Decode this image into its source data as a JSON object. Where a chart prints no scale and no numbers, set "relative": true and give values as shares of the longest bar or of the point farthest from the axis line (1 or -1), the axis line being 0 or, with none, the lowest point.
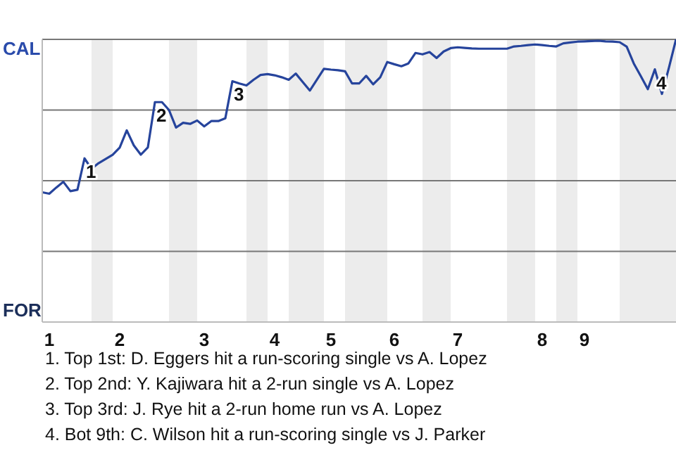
{
  "chart_data": {
    "type": "line",
    "relative": true,
    "categories": [
      null,
      "1",
      null,
      null,
      null,
      null,
      null,
      null,
      null,
      null,
      null,
      "2",
      null,
      null,
      null,
      null,
      null,
      null,
      null,
      null,
      null,
      null,
      null,
      "3",
      null,
      null,
      null,
      null,
      null,
      null,
      null,
      null,
      null,
      "4",
      null,
      null,
      null,
      null,
      null,
      null,
      null,
      "5",
      null,
      null,
      null,
      null,
      null,
      null,
      null,
      null,
      "6",
      null,
      null,
      null,
      null,
      null,
      null,
      null,
      null,
      "7",
      null,
      null,
      null,
      null,
      null,
      null,
      null,
      null,
      null,
      null,
      null,
      "8",
      null,
      null,
      null,
      null,
      null,
      "9",
      null,
      null,
      null,
      null,
      null,
      null,
      null,
      null,
      null,
      null,
      null,
      null,
      null
    ],
    "series": [
      {
        "color": "#26449c",
        "values": [
          0.459,
          0.454,
          0.476,
          0.496,
          0.463,
          0.468,
          0.579,
          0.542,
          0.562,
          0.577,
          0.592,
          0.617,
          0.678,
          0.625,
          0.592,
          0.618,
          0.778,
          0.778,
          0.75,
          0.688,
          0.705,
          0.701,
          0.713,
          0.692,
          0.711,
          0.711,
          0.721,
          0.852,
          0.844,
          0.837,
          0.857,
          0.874,
          0.877,
          0.873,
          0.866,
          0.857,
          0.879,
          0.849,
          0.819,
          0.857,
          0.896,
          0.893,
          0.891,
          0.887,
          0.844,
          0.844,
          0.871,
          0.841,
          0.866,
          0.92,
          0.912,
          0.905,
          0.915,
          0.952,
          0.947,
          0.955,
          0.934,
          0.957,
          0.969,
          0.972,
          0.97,
          0.968,
          0.967,
          0.967,
          0.967,
          0.967,
          0.967,
          0.975,
          0.977,
          0.98,
          0.982,
          0.98,
          0.977,
          0.975,
          0.986,
          0.989,
          0.992,
          0.993,
          0.994,
          0.995,
          0.993,
          0.992,
          0.99,
          0.974,
          0.915,
          0.87,
          0.824,
          0.894,
          0.807,
          0.9,
          1.0
        ]
      }
    ],
    "grid": "y",
    "marker": "none",
    "line_style": "solid",
    "legend": false,
    "annotations": [
      "CAL",
      "FOR",
      {
        "text": "1",
        "y": 0.579
      },
      {
        "text": "2",
        "y": 0.778
      },
      {
        "text": "3",
        "y": 0.852
      },
      {
        "text": "4",
        "y": 0.894
      },
      "1. Top 1st: D. Eggers hit a run-scoring single vs A. Lopez",
      "2. Top 2nd: Y. Kajiwara hit a 2-run single vs A. Lopez",
      "3. Top 3rd: J. Rye hit a 2-run home run vs A. Lopez",
      "4. Bot 9th: C. Wilson hit a run-scoring single vs J. Parker"
    ]
  }
}
